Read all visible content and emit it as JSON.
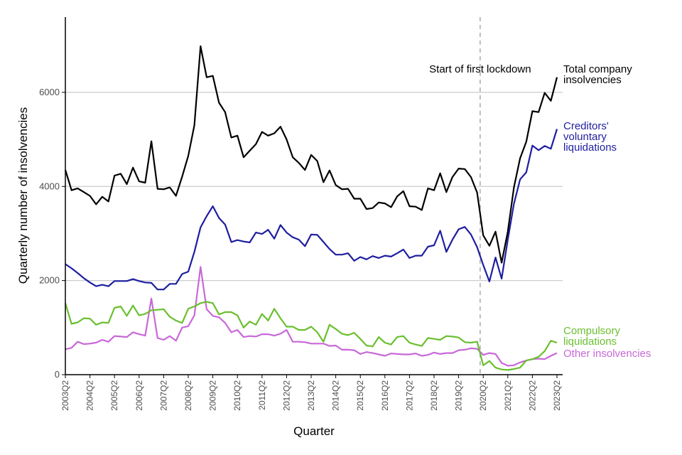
{
  "chart_data": {
    "type": "line",
    "xlabel": "Quarter",
    "ylabel": "Quarterly number of insolvencies",
    "ylim": [
      0,
      7600
    ],
    "yticks": [
      "0",
      "2000",
      "4000",
      "6000"
    ],
    "xticks": [
      "2003Q2",
      "2004Q2",
      "2005Q2",
      "2006Q2",
      "2007Q2",
      "2008Q2",
      "2009Q2",
      "2010Q2",
      "2011Q2",
      "2012Q2",
      "2013Q2",
      "2014Q2",
      "2015Q2",
      "2016Q2",
      "2017Q2",
      "2018Q2",
      "2019Q2",
      "2020Q2",
      "2021Q2",
      "2022Q2",
      "2023Q2"
    ],
    "x_start": "2003Q2",
    "annotation": {
      "text": "Start of first lockdown",
      "x_index": 67.5
    },
    "series": [
      {
        "name": "Total company insolvencies",
        "label_lines": [
          "Total company",
          "insolvencies"
        ],
        "color": "#000000",
        "values": [
          4350,
          3920,
          3960,
          3880,
          3800,
          3620,
          3780,
          3680,
          4230,
          4270,
          4050,
          4400,
          4110,
          4080,
          4960,
          3950,
          3940,
          3980,
          3800,
          4210,
          4650,
          5300,
          6980,
          6320,
          6350,
          5780,
          5580,
          5040,
          5080,
          4620,
          4760,
          4900,
          5160,
          5080,
          5130,
          5270,
          5000,
          4620,
          4500,
          4350,
          4670,
          4540,
          4090,
          4340,
          4030,
          3940,
          3950,
          3740,
          3740,
          3520,
          3540,
          3660,
          3640,
          3560,
          3790,
          3900,
          3580,
          3570,
          3500,
          3960,
          3920,
          4280,
          3880,
          4200,
          4380,
          4370,
          4200,
          3870,
          2960,
          2740,
          3040,
          2380,
          3040,
          3980,
          4600,
          4950,
          5600,
          5580,
          5990,
          5820,
          6320
        ]
      },
      {
        "name": "Creditors' voluntary liquidations",
        "label_lines": [
          "Creditors'",
          "voluntary",
          "liquidations"
        ],
        "color": "#1e1ea0",
        "values": [
          2350,
          2260,
          2160,
          2050,
          1960,
          1880,
          1910,
          1880,
          1990,
          1990,
          1990,
          2030,
          1990,
          1960,
          1950,
          1810,
          1810,
          1930,
          1930,
          2140,
          2190,
          2610,
          3130,
          3370,
          3580,
          3330,
          3190,
          2820,
          2860,
          2830,
          2810,
          3020,
          2990,
          3080,
          2890,
          3180,
          3020,
          2920,
          2870,
          2730,
          2980,
          2970,
          2820,
          2670,
          2550,
          2550,
          2580,
          2420,
          2500,
          2450,
          2520,
          2480,
          2530,
          2510,
          2580,
          2660,
          2480,
          2530,
          2530,
          2720,
          2750,
          3060,
          2610,
          2870,
          3090,
          3140,
          2980,
          2710,
          2330,
          1980,
          2490,
          2040,
          2870,
          3630,
          4150,
          4300,
          4870,
          4770,
          4860,
          4800,
          5220
        ]
      },
      {
        "name": "Compulsory liquidations",
        "label_lines": [
          "Compulsory",
          "liquidations"
        ],
        "color": "#6abf2e",
        "values": [
          1520,
          1080,
          1110,
          1200,
          1190,
          1060,
          1110,
          1100,
          1420,
          1450,
          1250,
          1470,
          1260,
          1290,
          1370,
          1380,
          1390,
          1230,
          1150,
          1100,
          1400,
          1450,
          1520,
          1550,
          1520,
          1280,
          1330,
          1330,
          1260,
          1000,
          1130,
          1060,
          1290,
          1150,
          1400,
          1200,
          1020,
          1020,
          950,
          950,
          1020,
          900,
          700,
          1060,
          970,
          870,
          840,
          890,
          760,
          620,
          600,
          800,
          680,
          640,
          800,
          820,
          680,
          640,
          610,
          780,
          760,
          740,
          820,
          810,
          790,
          690,
          680,
          700,
          200,
          290,
          150,
          110,
          100,
          120,
          150,
          300,
          330,
          380,
          500,
          720,
          680
        ]
      },
      {
        "name": "Other insolvencies",
        "label_lines": [
          "Other insolvencies"
        ],
        "color": "#c868d8",
        "values": [
          540,
          570,
          700,
          650,
          660,
          680,
          740,
          700,
          820,
          810,
          800,
          900,
          860,
          830,
          1620,
          780,
          740,
          820,
          720,
          1000,
          1030,
          1260,
          2290,
          1390,
          1250,
          1220,
          1100,
          900,
          950,
          800,
          820,
          810,
          860,
          860,
          830,
          870,
          950,
          700,
          700,
          690,
          660,
          660,
          660,
          610,
          620,
          530,
          530,
          520,
          440,
          480,
          460,
          430,
          400,
          450,
          440,
          430,
          430,
          450,
          400,
          420,
          470,
          440,
          460,
          460,
          520,
          530,
          560,
          550,
          420,
          460,
          440,
          250,
          190,
          200,
          260,
          300,
          330,
          340,
          330,
          400,
          460
        ]
      }
    ]
  }
}
